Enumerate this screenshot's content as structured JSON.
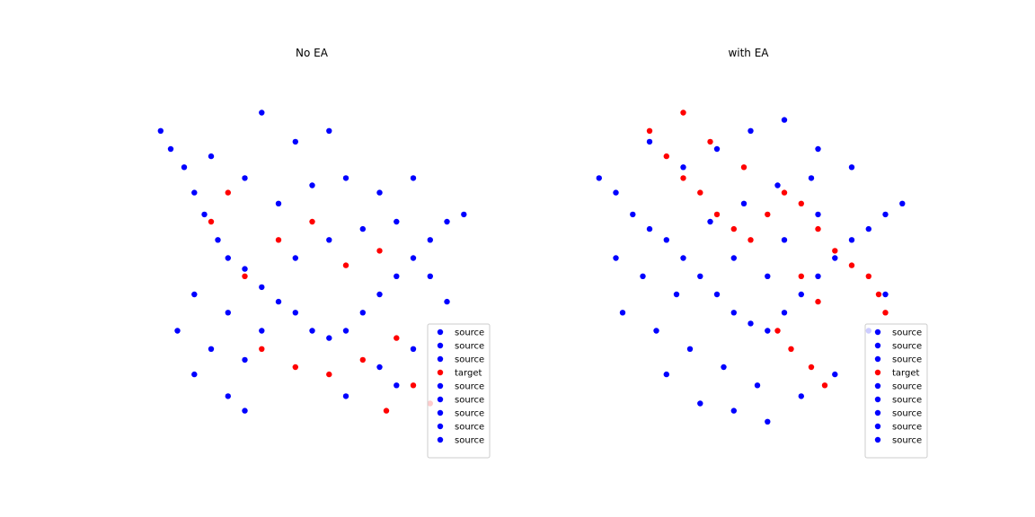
{
  "figure": {
    "background": "#ffffff",
    "colors": {
      "source": "#0000ff",
      "target": "#ff0000"
    }
  },
  "chart_data": [
    {
      "type": "scatter",
      "title": "No EA",
      "axes_visible": false,
      "grid": false,
      "legend_position": "lower-right",
      "legend": [
        {
          "label": "source",
          "color": "#0000ff"
        },
        {
          "label": "source",
          "color": "#0000ff"
        },
        {
          "label": "source",
          "color": "#0000ff"
        },
        {
          "label": "target",
          "color": "#ff0000"
        },
        {
          "label": "source",
          "color": "#0000ff"
        },
        {
          "label": "source",
          "color": "#0000ff"
        },
        {
          "label": "source",
          "color": "#0000ff"
        },
        {
          "label": "source",
          "color": "#0000ff"
        },
        {
          "label": "source",
          "color": "#0000ff"
        }
      ],
      "series": [
        {
          "color": "#0000ff",
          "points": [
            [
              0.05,
              0.85
            ],
            [
              0.08,
              0.8
            ],
            [
              0.12,
              0.75
            ],
            [
              0.15,
              0.68
            ],
            [
              0.18,
              0.62
            ],
            [
              0.22,
              0.55
            ],
            [
              0.25,
              0.5
            ],
            [
              0.3,
              0.47
            ],
            [
              0.35,
              0.42
            ],
            [
              0.4,
              0.38
            ],
            [
              0.45,
              0.35
            ],
            [
              0.5,
              0.3
            ],
            [
              0.55,
              0.28
            ],
            [
              0.6,
              0.3
            ],
            [
              0.65,
              0.35
            ],
            [
              0.7,
              0.4
            ],
            [
              0.75,
              0.45
            ],
            [
              0.8,
              0.5
            ],
            [
              0.85,
              0.55
            ],
            [
              0.9,
              0.6
            ],
            [
              0.95,
              0.62
            ],
            [
              0.1,
              0.3
            ],
            [
              0.2,
              0.25
            ],
            [
              0.3,
              0.22
            ],
            [
              0.15,
              0.4
            ],
            [
              0.25,
              0.35
            ],
            [
              0.35,
              0.3
            ],
            [
              0.45,
              0.5
            ],
            [
              0.55,
              0.55
            ],
            [
              0.65,
              0.58
            ],
            [
              0.4,
              0.65
            ],
            [
              0.5,
              0.7
            ],
            [
              0.6,
              0.72
            ],
            [
              0.3,
              0.72
            ],
            [
              0.2,
              0.78
            ],
            [
              0.45,
              0.82
            ],
            [
              0.55,
              0.85
            ],
            [
              0.35,
              0.9
            ],
            [
              0.7,
              0.68
            ],
            [
              0.8,
              0.72
            ],
            [
              0.75,
              0.6
            ],
            [
              0.85,
              0.45
            ],
            [
              0.9,
              0.38
            ],
            [
              0.15,
              0.18
            ],
            [
              0.25,
              0.12
            ],
            [
              0.3,
              0.08
            ],
            [
              0.7,
              0.2
            ],
            [
              0.75,
              0.15
            ],
            [
              0.8,
              0.25
            ],
            [
              0.6,
              0.12
            ]
          ]
        },
        {
          "color": "#ff0000",
          "points": [
            [
              0.35,
              0.25
            ],
            [
              0.45,
              0.2
            ],
            [
              0.55,
              0.18
            ],
            [
              0.65,
              0.22
            ],
            [
              0.75,
              0.28
            ],
            [
              0.4,
              0.55
            ],
            [
              0.5,
              0.6
            ],
            [
              0.6,
              0.48
            ],
            [
              0.7,
              0.52
            ],
            [
              0.3,
              0.45
            ],
            [
              0.8,
              0.15
            ],
            [
              0.85,
              0.1
            ],
            [
              0.72,
              0.08
            ],
            [
              0.2,
              0.6
            ],
            [
              0.25,
              0.68
            ]
          ]
        }
      ]
    },
    {
      "type": "scatter",
      "title": "with EA",
      "axes_visible": false,
      "grid": false,
      "legend_position": "lower-right",
      "legend": [
        {
          "label": "source",
          "color": "#0000ff"
        },
        {
          "label": "source",
          "color": "#0000ff"
        },
        {
          "label": "source",
          "color": "#0000ff"
        },
        {
          "label": "target",
          "color": "#ff0000"
        },
        {
          "label": "source",
          "color": "#0000ff"
        },
        {
          "label": "source",
          "color": "#0000ff"
        },
        {
          "label": "source",
          "color": "#0000ff"
        },
        {
          "label": "source",
          "color": "#0000ff"
        },
        {
          "label": "source",
          "color": "#0000ff"
        }
      ],
      "series": [
        {
          "color": "#0000ff",
          "points": [
            [
              0.05,
              0.72
            ],
            [
              0.1,
              0.68
            ],
            [
              0.15,
              0.62
            ],
            [
              0.2,
              0.58
            ],
            [
              0.25,
              0.55
            ],
            [
              0.3,
              0.5
            ],
            [
              0.35,
              0.45
            ],
            [
              0.4,
              0.4
            ],
            [
              0.45,
              0.35
            ],
            [
              0.5,
              0.32
            ],
            [
              0.55,
              0.3
            ],
            [
              0.6,
              0.35
            ],
            [
              0.65,
              0.4
            ],
            [
              0.7,
              0.45
            ],
            [
              0.75,
              0.5
            ],
            [
              0.8,
              0.55
            ],
            [
              0.85,
              0.58
            ],
            [
              0.9,
              0.62
            ],
            [
              0.95,
              0.65
            ],
            [
              0.12,
              0.35
            ],
            [
              0.22,
              0.3
            ],
            [
              0.32,
              0.25
            ],
            [
              0.42,
              0.2
            ],
            [
              0.52,
              0.15
            ],
            [
              0.18,
              0.45
            ],
            [
              0.28,
              0.4
            ],
            [
              0.38,
              0.6
            ],
            [
              0.48,
              0.65
            ],
            [
              0.58,
              0.7
            ],
            [
              0.68,
              0.72
            ],
            [
              0.3,
              0.75
            ],
            [
              0.4,
              0.8
            ],
            [
              0.5,
              0.85
            ],
            [
              0.6,
              0.88
            ],
            [
              0.2,
              0.82
            ],
            [
              0.7,
              0.8
            ],
            [
              0.8,
              0.75
            ],
            [
              0.35,
              0.1
            ],
            [
              0.45,
              0.08
            ],
            [
              0.55,
              0.05
            ],
            [
              0.65,
              0.12
            ],
            [
              0.75,
              0.18
            ],
            [
              0.85,
              0.3
            ],
            [
              0.9,
              0.4
            ],
            [
              0.1,
              0.5
            ],
            [
              0.25,
              0.18
            ],
            [
              0.6,
              0.55
            ],
            [
              0.7,
              0.62
            ],
            [
              0.45,
              0.5
            ],
            [
              0.55,
              0.45
            ]
          ]
        },
        {
          "color": "#ff0000",
          "points": [
            [
              0.2,
              0.85
            ],
            [
              0.25,
              0.78
            ],
            [
              0.3,
              0.72
            ],
            [
              0.35,
              0.68
            ],
            [
              0.4,
              0.62
            ],
            [
              0.45,
              0.58
            ],
            [
              0.5,
              0.55
            ],
            [
              0.55,
              0.62
            ],
            [
              0.6,
              0.68
            ],
            [
              0.65,
              0.65
            ],
            [
              0.7,
              0.58
            ],
            [
              0.75,
              0.52
            ],
            [
              0.8,
              0.48
            ],
            [
              0.85,
              0.45
            ],
            [
              0.88,
              0.4
            ],
            [
              0.9,
              0.35
            ],
            [
              0.65,
              0.45
            ],
            [
              0.7,
              0.38
            ],
            [
              0.58,
              0.3
            ],
            [
              0.62,
              0.25
            ],
            [
              0.68,
              0.2
            ],
            [
              0.72,
              0.15
            ],
            [
              0.3,
              0.9
            ],
            [
              0.38,
              0.82
            ],
            [
              0.48,
              0.75
            ]
          ]
        }
      ]
    }
  ]
}
